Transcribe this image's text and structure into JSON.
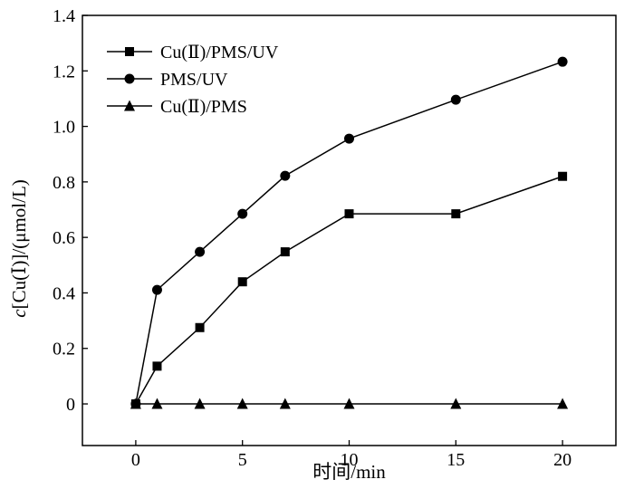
{
  "chart_data": {
    "type": "line",
    "title": "",
    "xlabel": "时间/min",
    "ylabel_italic": "c",
    "ylabel_rest": "[Cu(Ⅰ)]/(μmol/L)",
    "xlim": [
      -2.5,
      22.5
    ],
    "ylim": [
      -0.15,
      1.4
    ],
    "xticks": [
      0,
      5,
      10,
      15,
      20
    ],
    "xtick_labels": [
      "0",
      "5",
      "10",
      "15",
      "20"
    ],
    "yticks": [
      0,
      0.2,
      0.4,
      0.6,
      0.8,
      1.0,
      1.2,
      1.4
    ],
    "ytick_labels": [
      "0",
      "0.2",
      "0.4",
      "0.6",
      "0.8",
      "1.0",
      "1.2",
      "1.4"
    ],
    "grid": false,
    "legend_position": "top-left",
    "series": [
      {
        "name": "Cu(Ⅱ)/PMS/UV",
        "marker": "square",
        "x": [
          0,
          1,
          3,
          5,
          7,
          10,
          15,
          20
        ],
        "y": [
          0,
          0.136,
          0.275,
          0.44,
          0.548,
          0.685,
          0.685,
          0.82
        ]
      },
      {
        "name": "PMS/UV",
        "marker": "circle",
        "x": [
          0,
          1,
          3,
          5,
          7,
          10,
          15,
          20
        ],
        "y": [
          0,
          0.411,
          0.548,
          0.685,
          0.822,
          0.956,
          1.096,
          1.233
        ]
      },
      {
        "name": "Cu(Ⅱ)/PMS",
        "marker": "triangle",
        "x": [
          0,
          1,
          3,
          5,
          7,
          10,
          15,
          20
        ],
        "y": [
          0,
          0,
          0,
          0,
          0,
          0,
          0,
          0
        ]
      }
    ],
    "color": "#000000"
  }
}
